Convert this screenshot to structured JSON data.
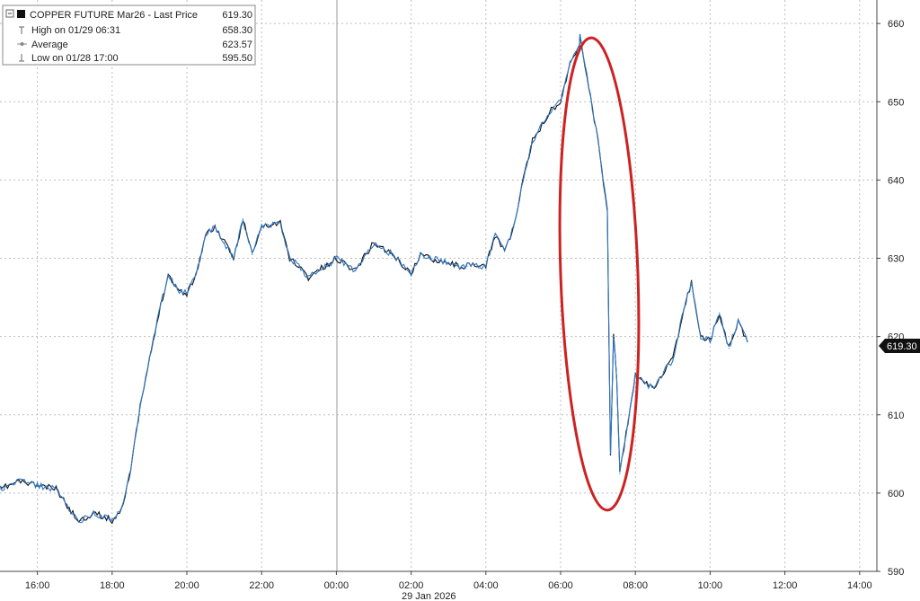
{
  "chart_data": {
    "type": "line",
    "legend": {
      "placement": "top-left",
      "rows": [
        {
          "icon": "black-square-icon",
          "label": "COPPER FUTURE Mar26 - Last Price",
          "value": "619.30"
        },
        {
          "icon": "high-marker-icon",
          "label": "High on 01/29 06:31",
          "value": "658.30"
        },
        {
          "icon": "average-marker-icon",
          "label": "Average",
          "value": "623.57"
        },
        {
          "icon": "low-marker-icon",
          "label": "Low on 01/28 17:00",
          "value": "595.50"
        }
      ]
    },
    "last_price_badge": "619.30",
    "x_axis": {
      "range_hours": [
        15.0,
        14.8
      ],
      "ticks": [
        "16:00",
        "18:00",
        "20:00",
        "22:00",
        "00:00",
        "02:00",
        "04:00",
        "06:00",
        "08:00",
        "10:00",
        "12:00",
        "14:00"
      ],
      "date_label": "29 Jan 2026",
      "date_divider_at": "00:00"
    },
    "y_axis": {
      "side": "right",
      "ylim": [
        590,
        663
      ],
      "ticks": [
        "590",
        "600",
        "610",
        "620",
        "630",
        "640",
        "650",
        "660"
      ]
    },
    "grid": true,
    "annotation": {
      "shape": "ellipse",
      "color": "#cc2222",
      "around": "06:30–07:45 sell-off"
    },
    "colors": {
      "line_dark": "#111111",
      "line_blue": "#2f78c4",
      "badge_bg": "#111111",
      "badge_text": "#ffffff",
      "grid": "#bdbdbd"
    },
    "series": [
      {
        "time": [
          "15:00",
          "15:30",
          "16:00",
          "16:30",
          "17:00",
          "17:10",
          "17:30",
          "18:00",
          "18:15",
          "18:30",
          "18:45",
          "19:00",
          "19:15",
          "19:30",
          "19:45",
          "20:00",
          "20:15",
          "20:30",
          "20:45",
          "21:00",
          "21:15",
          "21:30",
          "21:45",
          "22:00",
          "22:30",
          "22:45",
          "23:00",
          "23:15",
          "23:30",
          "23:45",
          "00:00",
          "00:30",
          "01:00",
          "01:30",
          "02:00",
          "02:15",
          "02:30",
          "03:00",
          "03:15",
          "03:30",
          "04:00",
          "04:15",
          "04:30",
          "04:45",
          "05:00",
          "05:15",
          "05:30",
          "05:45",
          "06:00",
          "06:15",
          "06:30",
          "06:31",
          "06:45",
          "07:00",
          "07:15",
          "07:20",
          "07:25",
          "07:30",
          "07:35",
          "07:45",
          "08:00",
          "08:15",
          "08:30",
          "08:45",
          "09:00",
          "09:15",
          "09:30",
          "09:45",
          "10:00",
          "10:15",
          "10:30",
          "10:45",
          "11:00"
        ],
        "values": [
          600.5,
          601.5,
          601.0,
          600.5,
          597.0,
          596.5,
          597.5,
          596.5,
          598.0,
          603.0,
          611.0,
          617.0,
          623.0,
          628.0,
          626.0,
          625.5,
          628.0,
          633.0,
          634.0,
          632.0,
          630.0,
          635.0,
          630.5,
          634.0,
          634.5,
          630.0,
          629.0,
          627.5,
          628.5,
          629.0,
          630.0,
          628.5,
          632.0,
          630.5,
          628.0,
          630.5,
          630.0,
          629.5,
          629.0,
          629.0,
          629.0,
          633.0,
          631.0,
          634.0,
          640.0,
          645.0,
          647.0,
          649.0,
          650.0,
          655.0,
          657.0,
          658.3,
          652.0,
          645.0,
          636.0,
          605.0,
          620.0,
          615.0,
          602.5,
          607.5,
          615.0,
          614.0,
          613.5,
          615.5,
          617.0,
          622.5,
          627.0,
          620.0,
          619.5,
          623.0,
          618.5,
          622.0,
          619.3
        ]
      }
    ]
  }
}
